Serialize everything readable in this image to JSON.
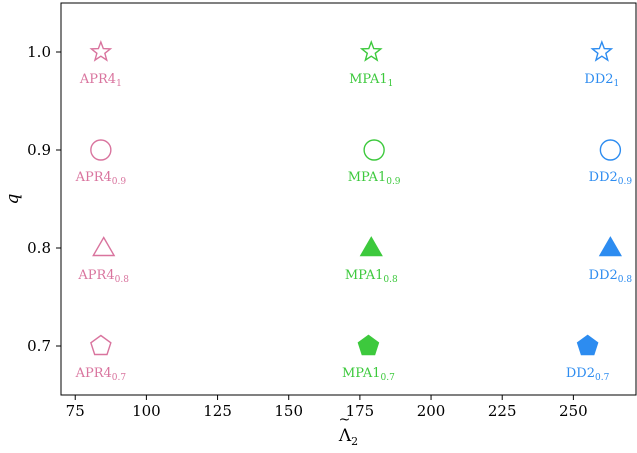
{
  "chart_data": {
    "type": "scatter",
    "xlabel_base": "Λ",
    "xlabel_accent": "~",
    "xlabel_sub": "2",
    "ylabel": "q",
    "xlim": [
      70,
      272
    ],
    "ylim": [
      0.65,
      1.05
    ],
    "xticks": [
      75,
      100,
      125,
      150,
      175,
      200,
      225,
      250
    ],
    "yticks": [
      0.7,
      0.8,
      0.9,
      1.0
    ],
    "ytick_labels": [
      "0.7",
      "0.8",
      "0.9",
      "1.0"
    ],
    "grid": false,
    "colors": {
      "APR4": "#d9749e",
      "MPA1": "#3dc93d",
      "DD2": "#2d8cf0"
    },
    "points": [
      {
        "eos": "APR4",
        "sub": "1",
        "x": 84,
        "q": 1.0,
        "marker": "star",
        "filled": false
      },
      {
        "eos": "APR4",
        "sub": "0.9",
        "x": 84,
        "q": 0.9,
        "marker": "circle",
        "filled": false
      },
      {
        "eos": "APR4",
        "sub": "0.8",
        "x": 85,
        "q": 0.8,
        "marker": "triangle",
        "filled": false
      },
      {
        "eos": "APR4",
        "sub": "0.7",
        "x": 84,
        "q": 0.7,
        "marker": "pentagon",
        "filled": false
      },
      {
        "eos": "MPA1",
        "sub": "1",
        "x": 179,
        "q": 1.0,
        "marker": "star",
        "filled": false
      },
      {
        "eos": "MPA1",
        "sub": "0.9",
        "x": 180,
        "q": 0.9,
        "marker": "circle",
        "filled": false
      },
      {
        "eos": "MPA1",
        "sub": "0.8",
        "x": 179,
        "q": 0.8,
        "marker": "triangle",
        "filled": true
      },
      {
        "eos": "MPA1",
        "sub": "0.7",
        "x": 178,
        "q": 0.7,
        "marker": "pentagon",
        "filled": true
      },
      {
        "eos": "DD2",
        "sub": "1",
        "x": 260,
        "q": 1.0,
        "marker": "star",
        "filled": false
      },
      {
        "eos": "DD2",
        "sub": "0.9",
        "x": 263,
        "q": 0.9,
        "marker": "circle",
        "filled": false
      },
      {
        "eos": "DD2",
        "sub": "0.8",
        "x": 263,
        "q": 0.8,
        "marker": "triangle",
        "filled": true
      },
      {
        "eos": "DD2",
        "sub": "0.7",
        "x": 255,
        "q": 0.7,
        "marker": "pentagon",
        "filled": true
      }
    ]
  }
}
